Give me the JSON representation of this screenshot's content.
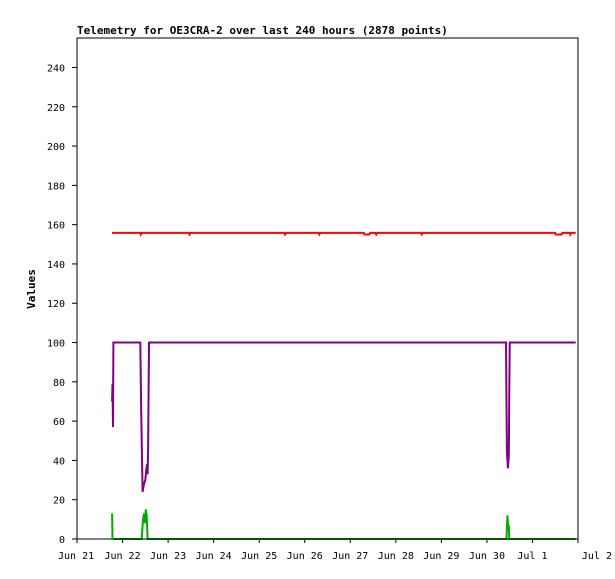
{
  "chart_data": {
    "type": "line",
    "title": "Telemetry for OE3CRA-2 over last 240 hours (2878 points)",
    "xlabel": "",
    "ylabel": "Values",
    "ylim": [
      0,
      255
    ],
    "xlim": [
      "Jun 21",
      "Jul 2"
    ],
    "grid": false,
    "legend": "none",
    "x_ticks": [
      "Jun 21",
      "Jun 22",
      "Jun 23",
      "Jun 24",
      "Jun 25",
      "Jun 26",
      "Jun 27",
      "Jun 28",
      "Jun 29",
      "Jun 30",
      "Jul 1",
      "Jul 2"
    ],
    "y_ticks": [
      0,
      20,
      40,
      60,
      80,
      100,
      120,
      140,
      160,
      180,
      200,
      220,
      240
    ],
    "series": [
      {
        "color": "#ff0000",
        "points": [
          [
            0.77,
            155.8
          ],
          [
            1.39,
            155.8
          ],
          [
            1.4,
            155
          ],
          [
            1.42,
            155.8
          ],
          [
            2.45,
            155.8
          ],
          [
            2.47,
            155
          ],
          [
            2.49,
            155.8
          ],
          [
            4.55,
            155.8
          ],
          [
            4.57,
            155
          ],
          [
            4.59,
            155.8
          ],
          [
            5.3,
            155.8
          ],
          [
            5.32,
            155
          ],
          [
            5.34,
            155.8
          ],
          [
            6.3,
            155.8
          ],
          [
            6.31,
            155
          ],
          [
            6.42,
            155
          ],
          [
            6.44,
            155.8
          ],
          [
            6.55,
            155.8
          ],
          [
            6.57,
            155
          ],
          [
            6.59,
            155.8
          ],
          [
            7.55,
            155.8
          ],
          [
            7.57,
            155
          ],
          [
            7.59,
            155.8
          ],
          [
            10.5,
            155.8
          ],
          [
            10.51,
            155
          ],
          [
            10.64,
            155
          ],
          [
            10.66,
            155.8
          ],
          [
            10.82,
            155.8
          ],
          [
            10.83,
            155
          ],
          [
            10.85,
            155.8
          ],
          [
            10.95,
            155.8
          ]
        ]
      },
      {
        "color": "#800080",
        "points": [
          [
            0.77,
            70
          ],
          [
            0.78,
            79
          ],
          [
            0.79,
            57
          ],
          [
            0.8,
            100
          ],
          [
            1.39,
            100
          ],
          [
            1.41,
            65
          ],
          [
            1.44,
            24
          ],
          [
            1.47,
            28
          ],
          [
            1.5,
            30
          ],
          [
            1.52,
            35
          ],
          [
            1.54,
            38
          ],
          [
            1.55,
            33
          ],
          [
            1.56,
            45
          ],
          [
            1.58,
            100
          ],
          [
            9.42,
            100
          ],
          [
            9.44,
            45
          ],
          [
            9.46,
            36
          ],
          [
            9.48,
            42
          ],
          [
            9.5,
            100
          ],
          [
            10.95,
            100
          ]
        ]
      },
      {
        "color": "#00aa00",
        "points": [
          [
            0.77,
            13
          ],
          [
            0.78,
            0
          ],
          [
            1.42,
            0
          ],
          [
            1.45,
            10
          ],
          [
            1.47,
            13
          ],
          [
            1.49,
            8
          ],
          [
            1.51,
            15
          ],
          [
            1.53,
            12
          ],
          [
            1.55,
            0
          ],
          [
            9.43,
            0
          ],
          [
            9.45,
            12
          ],
          [
            9.47,
            5
          ],
          [
            9.48,
            7
          ],
          [
            9.49,
            0
          ],
          [
            10.95,
            0
          ]
        ]
      },
      {
        "color": "#000000",
        "points": [
          [
            0.8,
            0
          ],
          [
            10.95,
            0
          ]
        ]
      }
    ]
  }
}
